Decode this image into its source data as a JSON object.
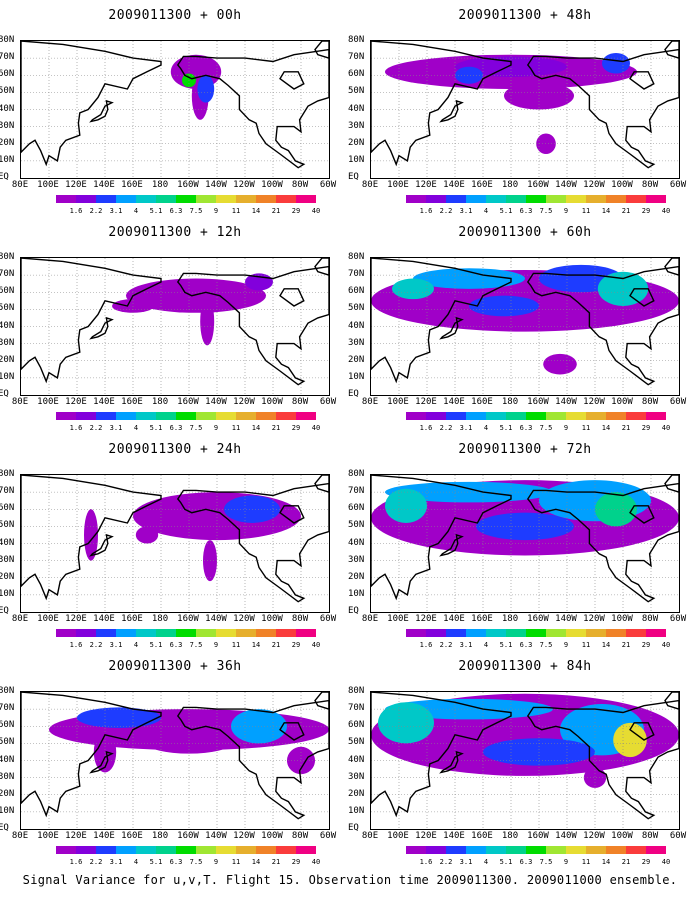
{
  "footer": "Signal Variance for u,v,T. Flight 15. Observation time 2009011300. 2009011000 ensemble.",
  "lat_labels": [
    "80N",
    "70N",
    "60N",
    "50N",
    "40N",
    "30N",
    "20N",
    "10N",
    "EQ"
  ],
  "lon_labels": [
    "80E",
    "100E",
    "120E",
    "140E",
    "160E",
    "180",
    "160W",
    "140W",
    "120W",
    "100W",
    "80W",
    "60W"
  ],
  "colorbar": {
    "levels": [
      "1.6",
      "2.2",
      "3.1",
      "4",
      "5.1",
      "6.3",
      "7.5",
      "9",
      "11",
      "14",
      "21",
      "29",
      "40"
    ],
    "colors": [
      "#a000c8",
      "#8200dc",
      "#1e3cff",
      "#00a0ff",
      "#00c8c8",
      "#00d28c",
      "#00dc00",
      "#a0e632",
      "#e6dc32",
      "#e6af2d",
      "#f08228",
      "#fa3c3c",
      "#f00082"
    ]
  },
  "chart_data": [
    {
      "type": "heatmap",
      "title": "2009011300 + 00h",
      "variable": "signal variance u,v,T",
      "lead_hours": 0,
      "levels_shown_max": "9"
    },
    {
      "type": "heatmap",
      "title": "2009011300 + 48h",
      "variable": "signal variance u,v,T",
      "lead_hours": 48,
      "levels_shown_max": "5.1"
    },
    {
      "type": "heatmap",
      "title": "2009011300 + 12h",
      "variable": "signal variance u,v,T",
      "lead_hours": 12,
      "levels_shown_max": "3.1"
    },
    {
      "type": "heatmap",
      "title": "2009011300 + 60h",
      "variable": "signal variance u,v,T",
      "lead_hours": 60,
      "levels_shown_max": "6.3"
    },
    {
      "type": "heatmap",
      "title": "2009011300 + 24h",
      "variable": "signal variance u,v,T",
      "lead_hours": 24,
      "levels_shown_max": "4"
    },
    {
      "type": "heatmap",
      "title": "2009011300 + 72h",
      "variable": "signal variance u,v,T",
      "lead_hours": 72,
      "levels_shown_max": "9"
    },
    {
      "type": "heatmap",
      "title": "2009011300 + 36h",
      "variable": "signal variance u,v,T",
      "lead_hours": 36,
      "levels_shown_max": "4"
    },
    {
      "type": "heatmap",
      "title": "2009011300 + 84h",
      "variable": "signal variance u,v,T",
      "lead_hours": 84,
      "levels_shown_max": "11"
    }
  ]
}
